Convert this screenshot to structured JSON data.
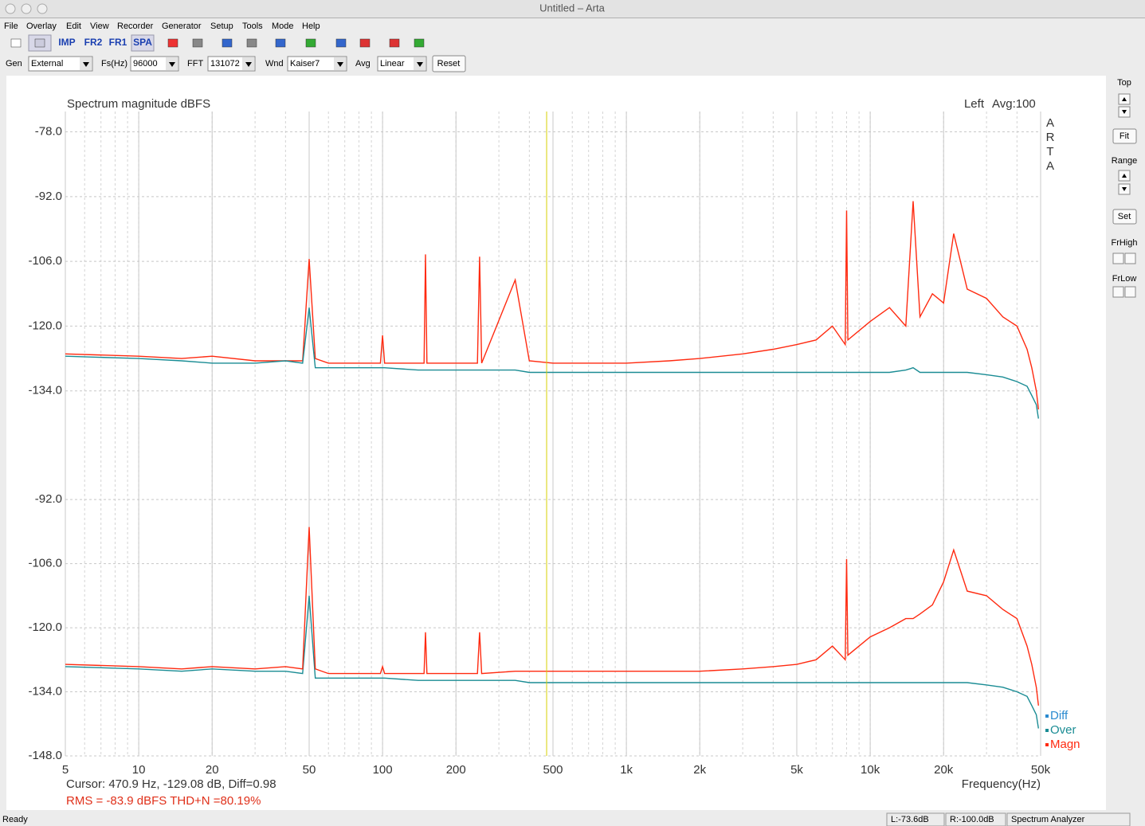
{
  "window": {
    "title": "Untitled – Arta"
  },
  "menu": [
    "File",
    "Overlay",
    "Edit",
    "View",
    "Recorder",
    "Generator",
    "Setup",
    "Tools",
    "Mode",
    "Help"
  ],
  "toolbar": [
    "IMP",
    "FR2",
    "FR1",
    "SPA"
  ],
  "controls": [
    {
      "label": "Gen",
      "value": "External"
    },
    {
      "label": "Fs(Hz)",
      "value": "96000"
    },
    {
      "label": "FFT",
      "value": "131072"
    },
    {
      "label": "Wnd",
      "value": "Kaiser7"
    },
    {
      "label": "Avg",
      "value": "Linear"
    }
  ],
  "reset": "Reset",
  "side": {
    "top": "Top",
    "fit": "Fit",
    "range": "Range",
    "set": "Set",
    "frhigh": "FrHigh",
    "frlow": "FrLow"
  },
  "status": {
    "ready": "Ready",
    "left": "L:-73.6dB",
    "right": "R:-100.0dB",
    "mode": "Spectrum Analyzer"
  },
  "info": {
    "cursor": "Cursor:   470.9 Hz, -129.08 dB,  Diff=0.98",
    "rms": "RMS =  -83.9 dBFS   THD+N =80.19%"
  },
  "chart_data": [
    {
      "type": "line",
      "title": "Spectrum magnitude dBFS",
      "channel": "Left",
      "average": "Avg:100",
      "watermark": "ARTA",
      "log_x": true,
      "xlim": [
        5,
        50000
      ],
      "ylim": [
        -148,
        -73.6
      ],
      "yticks": [
        {
          "value": -78,
          "label": "-78.0"
        },
        {
          "value": -92,
          "label": "-92.0"
        },
        {
          "value": -106,
          "label": "-106.0"
        },
        {
          "value": -120,
          "label": "-120.0"
        },
        {
          "value": -134,
          "label": "-134.0"
        }
      ],
      "cursor_x": 470.9,
      "cursor_color": "#d8d000",
      "x": [
        5,
        10,
        15,
        20,
        30,
        40,
        47,
        50,
        53,
        60,
        80,
        98,
        100,
        102,
        140,
        148,
        150,
        152,
        200,
        245,
        250,
        255,
        350,
        400,
        500,
        700,
        1000,
        1500,
        2000,
        3000,
        4000,
        5000,
        6000,
        7000,
        7900,
        8000,
        8100,
        10000,
        12000,
        14000,
        15000,
        16000,
        18000,
        20000,
        22000,
        25000,
        30000,
        35000,
        40000,
        44000,
        46000,
        48000,
        49000
      ],
      "series": [
        {
          "color": "#ff2a10",
          "values": [
            -126,
            -126.5,
            -127,
            -126.5,
            -127.5,
            -127.5,
            -127.5,
            -105.5,
            -127,
            -128,
            -128,
            -128,
            -122,
            -128,
            -128,
            -128,
            -104.5,
            -128,
            -128,
            -128,
            -105,
            -128,
            -110,
            -127.5,
            -128,
            -128,
            -128,
            -127.5,
            -127,
            -126,
            -125,
            -124,
            -123,
            -120,
            -124,
            -95,
            -123,
            -119,
            -116,
            -120,
            -93,
            -118,
            -113,
            -115,
            -100,
            -112,
            -114,
            -118,
            -120,
            -125,
            -129,
            -134,
            -138
          ]
        },
        {
          "color": "#1a8c94",
          "values": [
            -126.5,
            -127,
            -127.5,
            -128,
            -128,
            -127.5,
            -128,
            -116,
            -129,
            -129,
            -129,
            -129,
            -129,
            -129,
            -129.5,
            -129.5,
            -129.5,
            -129.5,
            -129.5,
            -129.5,
            -129.5,
            -129.5,
            -129.5,
            -130,
            -130,
            -130,
            -130,
            -130,
            -130,
            -130,
            -130,
            -130,
            -130,
            -130,
            -130,
            -130,
            -130,
            -130,
            -130,
            -129.5,
            -129,
            -130,
            -130,
            -130,
            -130,
            -130,
            -130.5,
            -131,
            -132,
            -133,
            -135,
            -137,
            -140
          ]
        }
      ]
    },
    {
      "type": "line",
      "log_x": true,
      "xlim": [
        5,
        50000
      ],
      "ylim": [
        -148,
        -82.4
      ],
      "xlabel": "Frequency(Hz)",
      "xticks": [
        5,
        10,
        20,
        50,
        100,
        200,
        500,
        {
          "value": 1000,
          "label": "1k"
        },
        {
          "value": 2000,
          "label": "2k"
        },
        {
          "value": 5000,
          "label": "5k"
        },
        {
          "value": 10000,
          "label": "10k"
        },
        {
          "value": 20000,
          "label": "20k"
        },
        {
          "value": 50000,
          "label": "50k"
        }
      ],
      "yticks": [
        {
          "value": -92,
          "label": "-92.0"
        },
        {
          "value": -106,
          "label": "-106.0"
        },
        {
          "value": -120,
          "label": "-120.0"
        },
        {
          "value": -134,
          "label": "-134.0"
        },
        {
          "value": -148,
          "label": "-148.0"
        }
      ],
      "x": [
        5,
        10,
        15,
        20,
        30,
        40,
        47,
        50,
        53,
        60,
        80,
        98,
        100,
        102,
        140,
        148,
        150,
        152,
        200,
        245,
        250,
        255,
        350,
        400,
        500,
        700,
        1000,
        1500,
        2000,
        3000,
        4000,
        5000,
        6000,
        7000,
        7900,
        8000,
        8100,
        10000,
        12000,
        14000,
        15000,
        16000,
        18000,
        20000,
        22000,
        25000,
        30000,
        35000,
        40000,
        44000,
        46000,
        48000,
        49000
      ],
      "series": [
        {
          "name": "Diff",
          "color": "#2a8ad0",
          "values": [
            null,
            null,
            null,
            null,
            null,
            null,
            null,
            null,
            null,
            null,
            null,
            null,
            null,
            null,
            null,
            null,
            null,
            null,
            null,
            null,
            null,
            null,
            null,
            null,
            null,
            null,
            null,
            null,
            null,
            null,
            null,
            null,
            null,
            null,
            null,
            null,
            null,
            null,
            null,
            null,
            null,
            null,
            null,
            null,
            null,
            null,
            null,
            null,
            null,
            null,
            null,
            null,
            null
          ]
        },
        {
          "name": "Over",
          "color": "#1a8c94",
          "values": [
            -128.5,
            -129,
            -129.5,
            -129,
            -129.5,
            -129.5,
            -130,
            -113,
            -131,
            -131,
            -131,
            -131,
            -131,
            -131,
            -131.5,
            -131.5,
            -131.5,
            -131.5,
            -131.5,
            -131.5,
            -131.5,
            -131.5,
            -131.5,
            -132,
            -132,
            -132,
            -132,
            -132,
            -132,
            -132,
            -132,
            -132,
            -132,
            -132,
            -132,
            -132,
            -132,
            -132,
            -132,
            -132,
            -132,
            -132,
            -132,
            -132,
            -132,
            -132,
            -132.5,
            -133,
            -134,
            -135,
            -137,
            -139,
            -142
          ]
        },
        {
          "name": "Magn",
          "color": "#ff2a10",
          "values": [
            -128,
            -128.5,
            -129,
            -128.5,
            -129,
            -128.5,
            -129,
            -98,
            -129,
            -130,
            -130,
            -130,
            -128.5,
            -130,
            -130,
            -130,
            -121,
            -130,
            -130,
            -130,
            -121,
            -130,
            -129.5,
            -129.5,
            -129.5,
            -129.5,
            -129.5,
            -129.5,
            -129.5,
            -129,
            -128.5,
            -128,
            -127,
            -124,
            -127,
            -105,
            -126,
            -122,
            -120,
            -118,
            -118,
            -117,
            -115,
            -110,
            -103,
            -112,
            -113,
            -116,
            -118,
            -124,
            -128,
            -133,
            -137
          ]
        }
      ]
    }
  ]
}
